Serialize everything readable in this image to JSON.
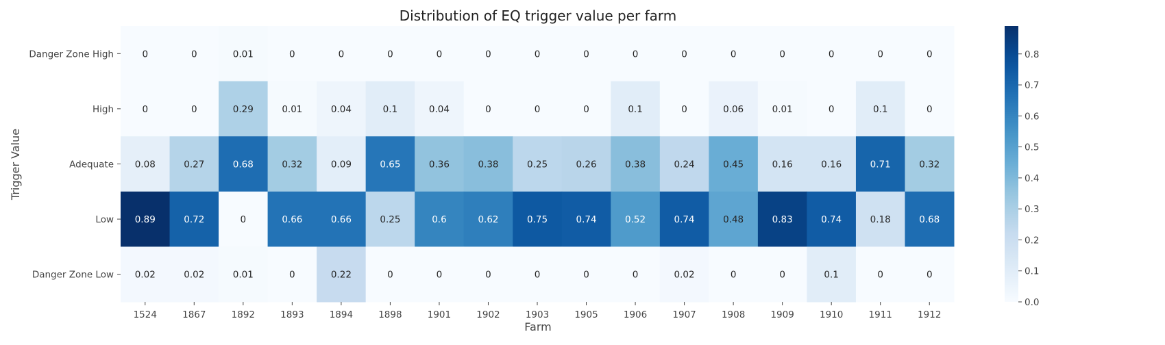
{
  "chart_data": {
    "type": "heatmap",
    "title": "Distribution of EQ trigger value per farm",
    "xlabel": "Farm",
    "ylabel": "Trigger Value",
    "x_categories": [
      "1524",
      "1867",
      "1892",
      "1893",
      "1894",
      "1898",
      "1901",
      "1902",
      "1903",
      "1905",
      "1906",
      "1907",
      "1908",
      "1909",
      "1910",
      "1911",
      "1912"
    ],
    "y_categories": [
      "Danger Zone High",
      "High",
      "Adequate",
      "Low",
      "Danger Zone Low"
    ],
    "values": [
      [
        0,
        0,
        0.01,
        0,
        0,
        0,
        0,
        0,
        0,
        0,
        0,
        0,
        0,
        0,
        0,
        0,
        0
      ],
      [
        0,
        0,
        0.29,
        0.01,
        0.04,
        0.1,
        0.04,
        0,
        0,
        0,
        0.1,
        0,
        0.06,
        0.01,
        0,
        0.1,
        0
      ],
      [
        0.08,
        0.27,
        0.68,
        0.32,
        0.09,
        0.65,
        0.36,
        0.38,
        0.25,
        0.26,
        0.38,
        0.24,
        0.45,
        0.16,
        0.16,
        0.71,
        0.32
      ],
      [
        0.89,
        0.72,
        0,
        0.66,
        0.66,
        0.25,
        0.6,
        0.62,
        0.75,
        0.74,
        0.52,
        0.74,
        0.48,
        0.83,
        0.74,
        0.18,
        0.68
      ],
      [
        0.02,
        0.02,
        0.01,
        0,
        0.22,
        0,
        0,
        0,
        0,
        0,
        0,
        0.02,
        0,
        0,
        0.1,
        0,
        0
      ]
    ],
    "colormap": "Blues",
    "vmin": 0,
    "vmax": 0.89,
    "colorbar_ticks": [
      "0.0",
      "0.1",
      "0.2",
      "0.3",
      "0.4",
      "0.5",
      "0.6",
      "0.7",
      "0.8"
    ],
    "annotated": true,
    "grid": false
  }
}
